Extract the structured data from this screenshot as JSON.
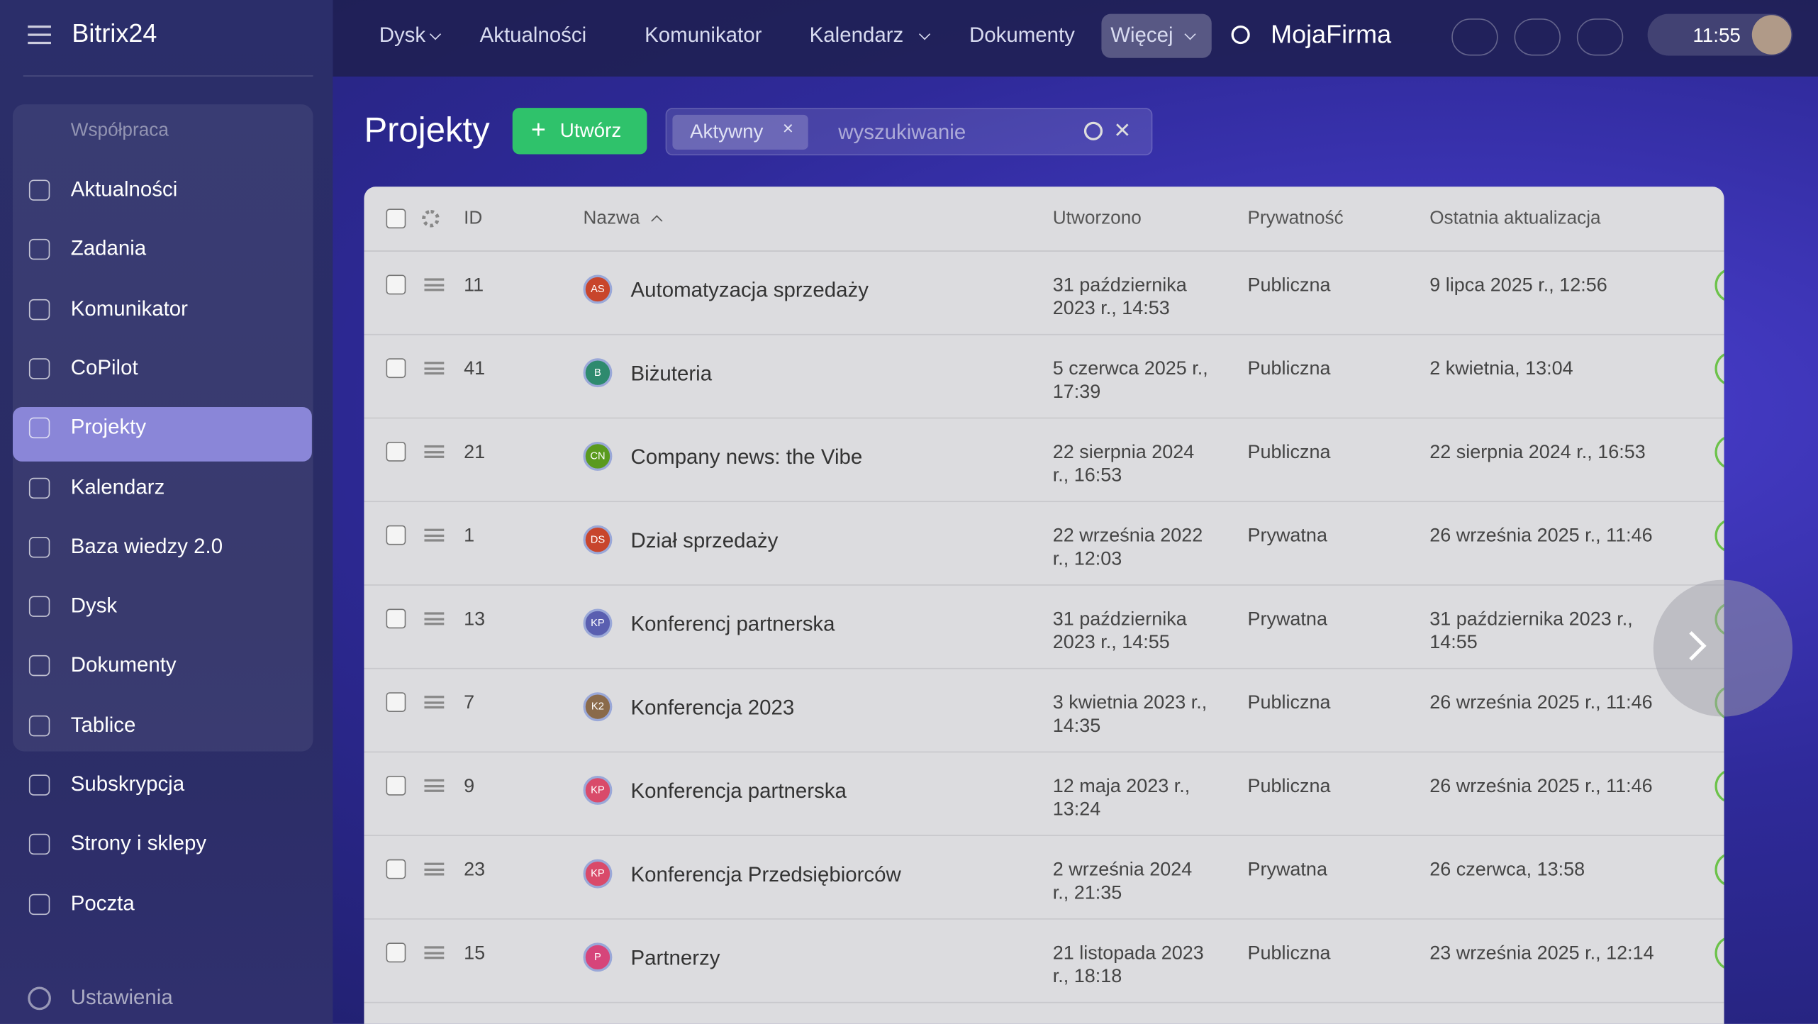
{
  "logo": "Bitrix24",
  "top_nav": [
    {
      "label": "Dysk",
      "dropdown": true
    },
    {
      "label": "Aktualności",
      "dropdown": false
    },
    {
      "label": "Komunikator",
      "dropdown": false
    },
    {
      "label": "Kalendarz",
      "dropdown": true
    },
    {
      "label": "Dokumenty",
      "dropdown": false
    },
    {
      "label": "Więcej",
      "dropdown": true
    }
  ],
  "company": "MojaFirma",
  "time": "11:55",
  "sidebar": {
    "group": "Współpraca",
    "items": [
      "Aktualności",
      "Zadania",
      "Komunikator",
      "CoPilot",
      "Projekty",
      "Kalendarz",
      "Baza wiedzy 2.0",
      "Dysk",
      "Dokumenty",
      "Tablice",
      "Subskrypcja",
      "Strony i sklepy",
      "Poczta"
    ],
    "active": 4,
    "group_size": 10,
    "settings": "Ustawienia"
  },
  "page": {
    "title": "Projekty",
    "create_button": "Utwórz",
    "filter_tag": "Aktywny",
    "search_placeholder": "wyszukiwanie"
  },
  "table": {
    "columns": [
      "ID",
      "Nazwa",
      "Utworzono",
      "Prywatność",
      "Ostatnia aktualizacja"
    ],
    "rows": [
      {
        "id": 11,
        "initials": "AS",
        "color": "#c8452c",
        "name": "Automatyzacja sprzedaży",
        "created": "31 października 2023 r., 14:53",
        "privacy": "Publiczna",
        "updated": "9 lipca 2025 r., 12:56"
      },
      {
        "id": 41,
        "initials": "B",
        "color": "#2e8a6e",
        "name": "Biżuteria",
        "created": "5 czerwca 2025 r., 17:39",
        "privacy": "Publiczna",
        "updated": "2 kwietnia, 13:04"
      },
      {
        "id": 21,
        "initials": "CN",
        "color": "#5a9a1e",
        "name": "Company news: the Vibe",
        "created": "22 sierpnia 2024 r., 16:53",
        "privacy": "Publiczna",
        "updated": "22 sierpnia 2024 r., 16:53"
      },
      {
        "id": 1,
        "initials": "DS",
        "color": "#c8452c",
        "name": "Dział sprzedaży",
        "created": "22 września 2022 r., 12:03",
        "privacy": "Prywatna",
        "updated": "26 września 2025 r., 11:46"
      },
      {
        "id": 13,
        "initials": "KP",
        "color": "#5a5fb0",
        "name": "Konferencj partnerska",
        "created": "31 października 2023 r., 14:55",
        "privacy": "Prywatna",
        "updated": "31 października 2023 r., 14:55"
      },
      {
        "id": 7,
        "initials": "K2",
        "color": "#8a6a4a",
        "name": "Konferencja 2023",
        "created": "3 kwietnia 2023 r., 14:35",
        "privacy": "Publiczna",
        "updated": "26 września 2025 r., 11:46"
      },
      {
        "id": 9,
        "initials": "KP",
        "color": "#d94a6a",
        "name": "Konferencja partnerska",
        "created": "12 maja 2023 r., 13:24",
        "privacy": "Publiczna",
        "updated": "26 września 2025 r., 11:46"
      },
      {
        "id": 23,
        "initials": "KP",
        "color": "#d94a6a",
        "name": "Konferencja Przedsiębiorców",
        "created": "2 września 2024 r., 21:35",
        "privacy": "Prywatna",
        "updated": "26 czerwca, 13:58"
      },
      {
        "id": 15,
        "initials": "P",
        "color": "#d6457a",
        "name": "Partnerzy",
        "created": "21 listopada 2023 r., 18:18",
        "privacy": "Publiczna",
        "updated": "23 września 2025 r., 12:14"
      }
    ]
  }
}
